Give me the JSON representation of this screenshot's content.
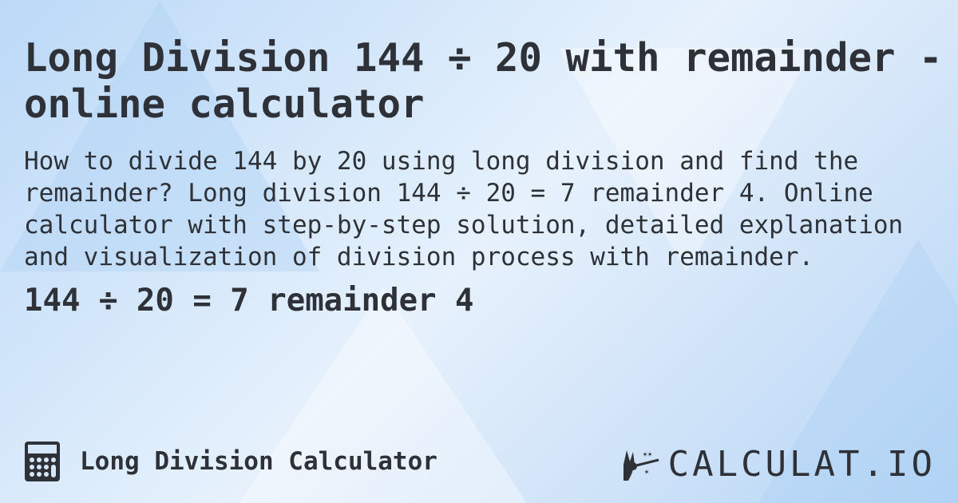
{
  "title": "Long Division 144 ÷ 20 with remainder - online calculator",
  "description": "How to divide 144 by 20 using long division and find the remainder? Long division 144 ÷ 20 = 7 remainder 4. Online calculator with step-by-step solution, detailed explanation and visualization of division process with remainder.",
  "result": "144 ÷ 20 = 7 remainder 4",
  "footer": {
    "calculator_label": "Long Division Calculator",
    "calculator_icon": "calculator-icon",
    "logo_text": "CALCULAT.IO"
  },
  "colors": {
    "text": "#2e3238",
    "background": "#cfe3f8"
  }
}
